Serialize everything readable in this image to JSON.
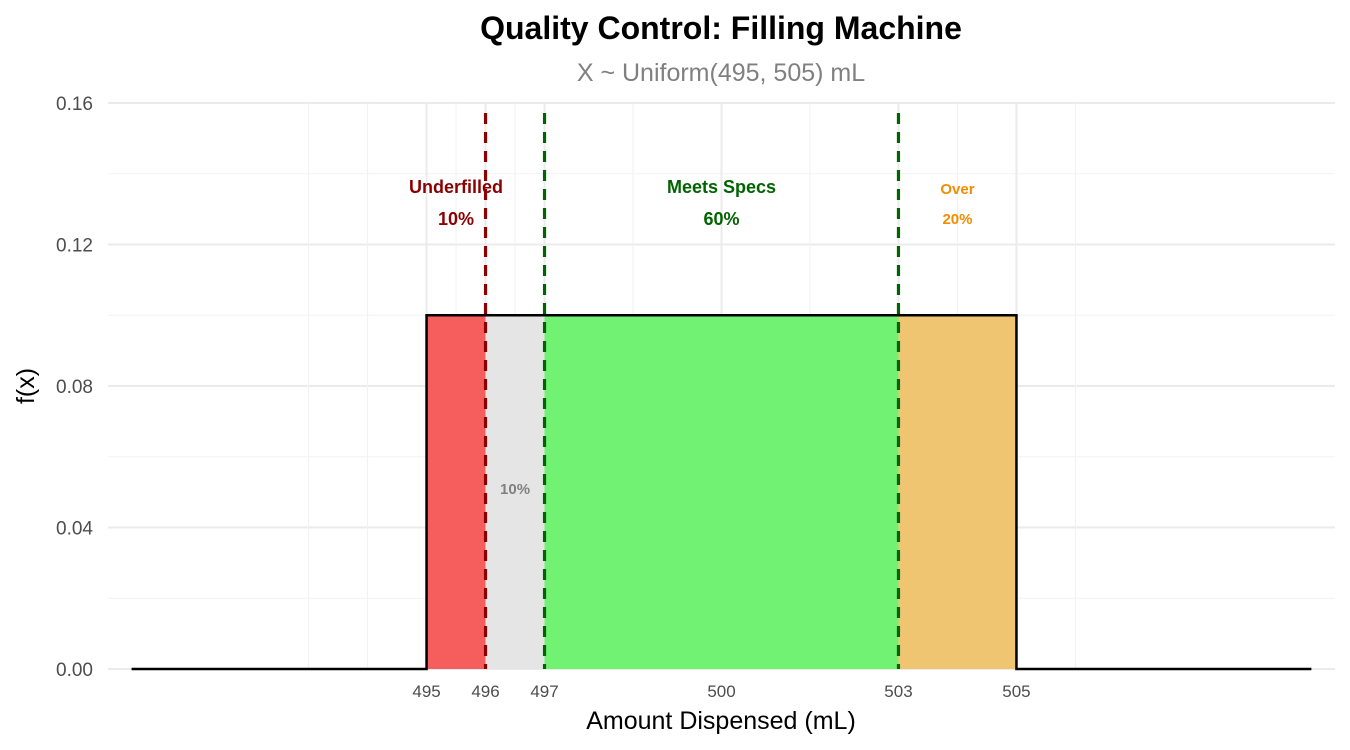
{
  "chart_data": {
    "type": "area",
    "title": "Quality Control: Filling Machine",
    "subtitle": "X ~ Uniform(495, 505) mL",
    "xlabel": "Amount Dispensed (mL)",
    "ylabel": "f(x)",
    "xlim": [
      489.6,
      510.4
    ],
    "ylim": [
      0,
      0.16
    ],
    "grid": true,
    "x_ticks": [
      495,
      496,
      497,
      500,
      503,
      505
    ],
    "x_tick_labels": [
      "495",
      "496",
      "497",
      "500",
      "503",
      "505"
    ],
    "y_ticks": [
      0.0,
      0.04,
      0.08,
      0.12,
      0.16
    ],
    "y_tick_labels": [
      "0.00",
      "0.04",
      "0.08",
      "0.12",
      "0.16"
    ],
    "density": {
      "lower": 495,
      "upper": 505,
      "height": 0.1,
      "x_start": 490,
      "x_end": 510
    },
    "regions": [
      {
        "x0": 495,
        "x1": 496,
        "color": "#f65e5e"
      },
      {
        "x0": 496,
        "x1": 497,
        "color": "#e5e5e5"
      },
      {
        "x0": 497,
        "x1": 503,
        "color": "#72f272"
      },
      {
        "x0": 503,
        "x1": 505,
        "color": "#f0c572"
      }
    ],
    "vlines": [
      {
        "x": 496,
        "color": "#8b0000"
      },
      {
        "x": 497,
        "color": "#006400"
      },
      {
        "x": 503,
        "color": "#006400"
      }
    ],
    "annotations": [
      {
        "text": "Underfilled",
        "x": 495.5,
        "y": 0.1345,
        "color": "#8b0000",
        "size": "medium"
      },
      {
        "text": "10%",
        "x": 495.5,
        "y": 0.1255,
        "color": "#8b0000",
        "size": "medium"
      },
      {
        "text": "Meets Specs",
        "x": 500,
        "y": 0.1345,
        "color": "#006400",
        "size": "medium"
      },
      {
        "text": "60%",
        "x": 500,
        "y": 0.1255,
        "color": "#006400",
        "size": "medium"
      },
      {
        "text": "Over",
        "x": 504,
        "y": 0.1343,
        "color": "#f28c00",
        "size": "small"
      },
      {
        "text": "20%",
        "x": 504,
        "y": 0.1258,
        "color": "#f28c00",
        "size": "small"
      },
      {
        "text": "10%",
        "x": 496.5,
        "y": 0.0495,
        "color": "#808080",
        "size": "tiny"
      }
    ]
  }
}
